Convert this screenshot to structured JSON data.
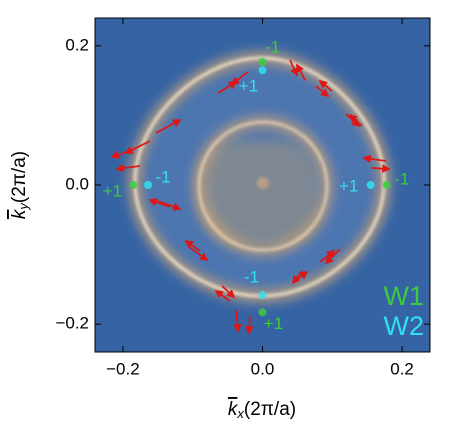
{
  "chart_data": {
    "type": "scatter",
    "xlabel": {
      "symbol": "k",
      "subscript": "x",
      "unit": "(2π/a)"
    },
    "ylabel": {
      "symbol": "k",
      "subscript": "y",
      "unit": "(2π/a)"
    },
    "xlim": [
      -0.24,
      0.24
    ],
    "ylim": [
      -0.24,
      0.24
    ],
    "xticks": [
      {
        "value": -0.2,
        "label": "−0.2"
      },
      {
        "value": 0,
        "label": "0.0"
      },
      {
        "value": 0.2,
        "label": "0.2"
      }
    ],
    "yticks": [
      {
        "value": -0.2,
        "label": "−0.2"
      },
      {
        "value": 0,
        "label": "0.0"
      },
      {
        "value": 0.2,
        "label": "0.2"
      }
    ],
    "legend": "bottom-right",
    "series": [
      {
        "name": "W1",
        "color": "#3ccc3c",
        "x": [
          0,
          0.178,
          -0.185,
          0
        ],
        "values": [
          0.177,
          0,
          0,
          -0.183
        ],
        "point_labels": [
          "-1",
          "-1",
          "+1",
          "+1"
        ]
      },
      {
        "name": "W2",
        "color": "#30e0f0",
        "x": [
          0,
          0.155,
          -0.164,
          0
        ],
        "values": [
          0.165,
          0,
          0,
          -0.158
        ],
        "point_labels": [
          "+1",
          "+1",
          "-1",
          "-1"
        ]
      }
    ]
  }
}
